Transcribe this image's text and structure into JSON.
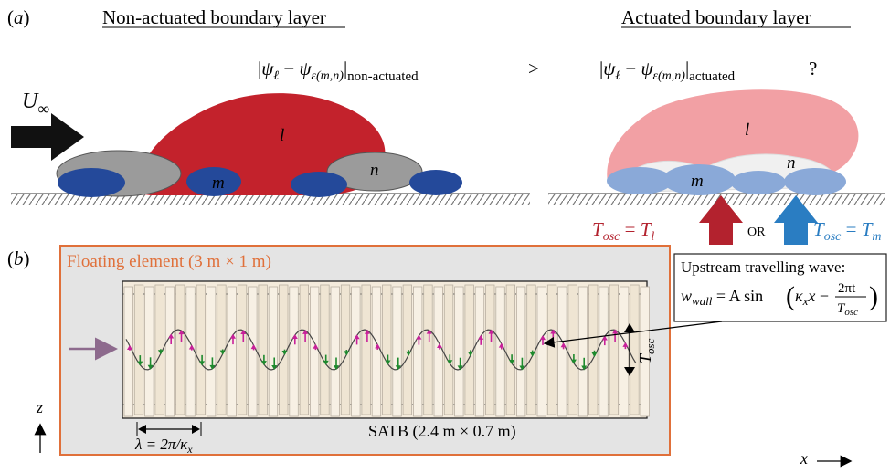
{
  "colors": {
    "large_eddy_red": "#c3222c",
    "large_eddy_pink": "#f2a0a4",
    "small_eddy_blue": "#24499a",
    "small_eddy_lightblue": "#8aa9d8",
    "eddy_gray": "#9b9b9b",
    "floating_element_border": "#e0703a",
    "floating_element_fill": "#e4e4e4",
    "satb_fill": "#f4ebdc",
    "arrow_red": "#b3222e",
    "arrow_blue": "#2a7dc2",
    "inflow_arrow": "#8d6a8d",
    "up_arrows": "#c8209a",
    "down_arrows": "#1e8a2e"
  },
  "panel_a": {
    "label_paren_open": "(",
    "label_letter": "a",
    "label_paren_close": ")",
    "title_left": "Non-actuated boundary layer",
    "title_right": "Actuated boundary layer",
    "freestream_symbol": "U",
    "freestream_sub": "∞",
    "compare_sign": ">",
    "question_mark": "?",
    "eq_psi": "ψ",
    "eq_l": "ℓ",
    "eq_minus": " − ",
    "eq_eps": "ε(m,n)",
    "eq_sub_left": "non-actuated",
    "eq_sub_right": "actuated",
    "eddy_large_label": "l",
    "eddy_m_label": "m",
    "eddy_n_label": "n",
    "tosc_T": "T",
    "tosc_osc": "osc",
    "tosc_eq": " = ",
    "tosc_l_sub": "l",
    "tosc_m_sub": "m",
    "or_label": "OR"
  },
  "panel_b": {
    "label_paren_open": "(",
    "label_letter": "b",
    "label_paren_close": ")",
    "floating_element_label": "Floating element (3 m × 1 m)",
    "callout_line1": "Upstream travelling wave:",
    "callout_w": "w",
    "callout_wall": "wall",
    "callout_eq_a": " = A sin",
    "callout_kappa": "κ",
    "callout_x_sub": "x",
    "callout_x": "x",
    "callout_minus": " − ",
    "callout_num": "2πt",
    "callout_den_T": "T",
    "callout_den_osc": "osc",
    "tosc_T": "T",
    "tosc_osc": "osc",
    "lambda_text": "λ = 2π/κ",
    "lambda_sub": "x",
    "satb_label": "SATB (2.4 m × 0.7 m)",
    "axis_z": "z",
    "axis_x": "x"
  }
}
